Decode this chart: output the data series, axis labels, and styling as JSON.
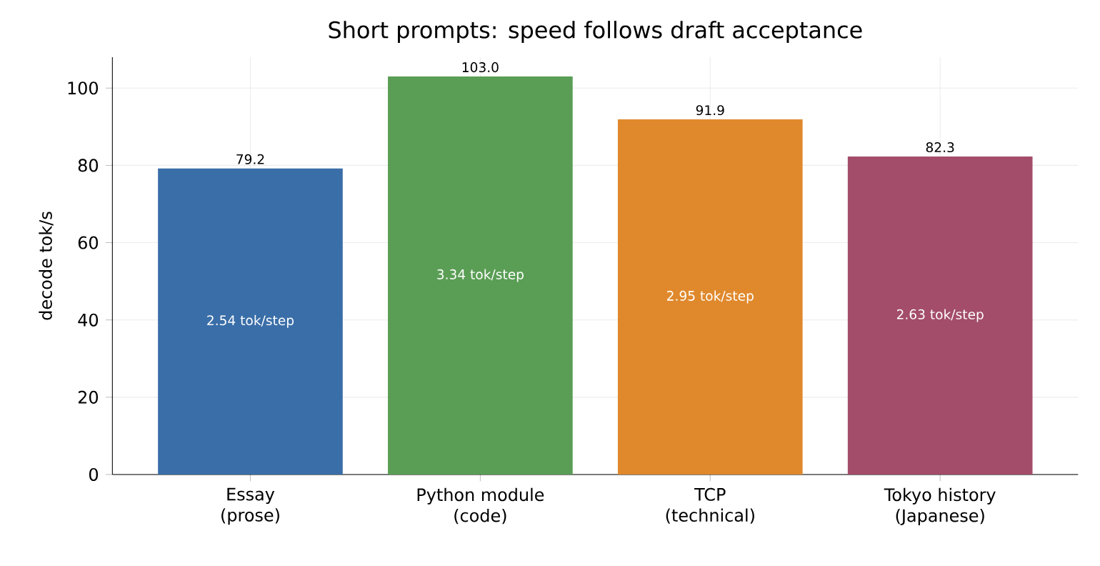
{
  "chart_data": {
    "type": "bar",
    "title": "Short prompts: speed follows draft acceptance",
    "ylabel": "decode tok/s",
    "categories": [
      "Essay\n(prose)",
      "Python module\n(code)",
      "TCP\n(technical)",
      "Tokyo history\n(Japanese)"
    ],
    "values": [
      79.2,
      103.0,
      91.9,
      82.3
    ],
    "colors": [
      "#3a6ea8",
      "#5a9e55",
      "#e0892c",
      "#a34d6a"
    ],
    "value_labels": [
      "79.2",
      "103.0",
      "91.9",
      "82.3"
    ],
    "annotations": [
      "2.54 tok/step",
      "3.34 tok/step",
      "2.95 tok/step",
      "2.63 tok/step"
    ],
    "ylim": [
      0,
      108
    ],
    "yticks": [
      0,
      20,
      40,
      60,
      80,
      100
    ],
    "grid": true
  }
}
